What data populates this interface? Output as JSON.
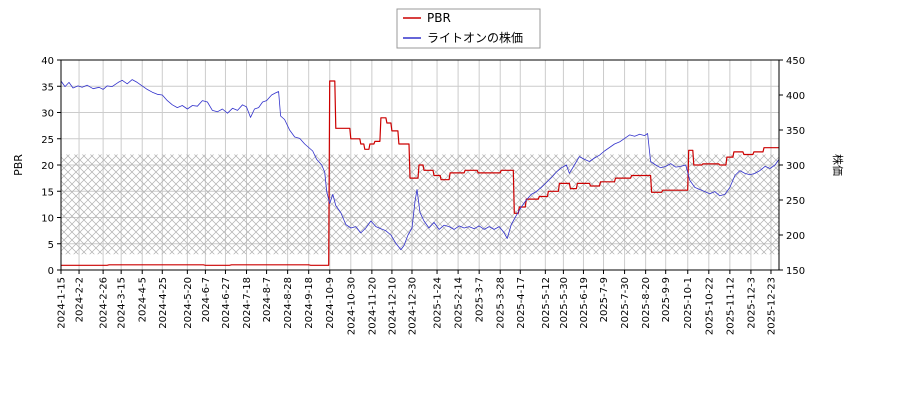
{
  "chart_data": {
    "type": "line",
    "legend": {
      "placement": "top-center",
      "entries": [
        {
          "label": "PBR",
          "color": "#cc0000"
        },
        {
          "label": "ライトオンの株価",
          "color": "#3333cc"
        }
      ]
    },
    "ylabel_left": "PBR",
    "ylabel_right": "株価",
    "ylim_left": [
      0,
      40
    ],
    "ylim_right": [
      150,
      450
    ],
    "yticks_left": [
      "0",
      "5",
      "10",
      "15",
      "20",
      "25",
      "30",
      "35",
      "40"
    ],
    "yticks_right": [
      "150",
      "200",
      "250",
      "300",
      "350",
      "400",
      "450"
    ],
    "xlim": [
      "2024-01-15",
      "2025-12-31"
    ],
    "xticks": [
      "2024-1-15",
      "2024-2-2",
      "2024-2-26",
      "2024-3-15",
      "2024-4-5",
      "2024-4-25",
      "2024-5-20",
      "2024-6-7",
      "2024-6-27",
      "2024-7-18",
      "2024-8-7",
      "2024-8-28",
      "2024-9-18",
      "2024-10-9",
      "2024-10-30",
      "2024-11-20",
      "2024-12-10",
      "2024-12-30",
      "2025-1-24",
      "2025-2-14",
      "2025-3-7",
      "2025-3-28",
      "2025-4-17",
      "2025-5-12",
      "2025-5-30",
      "2025-6-19",
      "2025-7-9",
      "2025-7-30",
      "2025-8-20",
      "2025-9-9",
      "2025-10-1",
      "2025-10-22",
      "2025-11-12",
      "2025-12-3",
      "2025-12-23"
    ],
    "grid": true,
    "hatched_band_left_units": [
      3,
      22
    ],
    "series": [
      {
        "name": "PBR",
        "axis": "left",
        "color": "#cc0000",
        "step": true,
        "points": [
          [
            "2024-01-15",
            0.9
          ],
          [
            "2024-03-01",
            0.9
          ],
          [
            "2024-03-03",
            1.0
          ],
          [
            "2024-06-05",
            1.0
          ],
          [
            "2024-06-07",
            0.9
          ],
          [
            "2024-07-01",
            0.9
          ],
          [
            "2024-07-03",
            1.0
          ],
          [
            "2024-09-18",
            1.0
          ],
          [
            "2024-09-20",
            0.9
          ],
          [
            "2024-10-08",
            0.9
          ],
          [
            "2024-10-09",
            36.0
          ],
          [
            "2024-10-14",
            36.0
          ],
          [
            "2024-10-15",
            27.0
          ],
          [
            "2024-10-29",
            27.0
          ],
          [
            "2024-10-30",
            25.0
          ],
          [
            "2024-11-08",
            25.0
          ],
          [
            "2024-11-09",
            24.0
          ],
          [
            "2024-11-12",
            24.0
          ],
          [
            "2024-11-13",
            23.0
          ],
          [
            "2024-11-17",
            23.0
          ],
          [
            "2024-11-18",
            24.0
          ],
          [
            "2024-11-22",
            24.0
          ],
          [
            "2024-11-23",
            24.5
          ],
          [
            "2024-11-28",
            24.5
          ],
          [
            "2024-11-29",
            29.0
          ],
          [
            "2024-12-04",
            29.0
          ],
          [
            "2024-12-05",
            28.0
          ],
          [
            "2024-12-09",
            28.0
          ],
          [
            "2024-12-10",
            26.5
          ],
          [
            "2024-12-16",
            26.5
          ],
          [
            "2024-12-17",
            24.0
          ],
          [
            "2024-12-27",
            24.0
          ],
          [
            "2024-12-28",
            17.5
          ],
          [
            "2025-01-05",
            17.5
          ],
          [
            "2025-01-06",
            20.0
          ],
          [
            "2025-01-10",
            20.0
          ],
          [
            "2025-01-11",
            19.0
          ],
          [
            "2025-01-20",
            19.0
          ],
          [
            "2025-01-21",
            18.0
          ],
          [
            "2025-01-27",
            18.0
          ],
          [
            "2025-01-28",
            17.2
          ],
          [
            "2025-02-05",
            17.2
          ],
          [
            "2025-02-06",
            18.5
          ],
          [
            "2025-02-20",
            18.5
          ],
          [
            "2025-02-21",
            19.0
          ],
          [
            "2025-03-05",
            19.0
          ],
          [
            "2025-03-06",
            18.5
          ],
          [
            "2025-03-28",
            18.5
          ],
          [
            "2025-03-29",
            19.0
          ],
          [
            "2025-04-10",
            19.0
          ],
          [
            "2025-04-11",
            10.8
          ],
          [
            "2025-04-15",
            10.8
          ],
          [
            "2025-04-16",
            12.0
          ],
          [
            "2025-04-22",
            12.0
          ],
          [
            "2025-04-23",
            13.5
          ],
          [
            "2025-05-05",
            13.5
          ],
          [
            "2025-05-06",
            14.0
          ],
          [
            "2025-05-14",
            14.0
          ],
          [
            "2025-05-15",
            15.0
          ],
          [
            "2025-05-25",
            15.0
          ],
          [
            "2025-05-26",
            16.5
          ],
          [
            "2025-06-05",
            16.5
          ],
          [
            "2025-06-06",
            15.5
          ],
          [
            "2025-06-12",
            15.5
          ],
          [
            "2025-06-13",
            16.5
          ],
          [
            "2025-06-25",
            16.5
          ],
          [
            "2025-06-26",
            16.0
          ],
          [
            "2025-07-05",
            16.0
          ],
          [
            "2025-07-06",
            16.8
          ],
          [
            "2025-07-20",
            16.8
          ],
          [
            "2025-07-21",
            17.5
          ],
          [
            "2025-08-05",
            17.5
          ],
          [
            "2025-08-06",
            18.0
          ],
          [
            "2025-08-25",
            18.0
          ],
          [
            "2025-08-26",
            14.8
          ],
          [
            "2025-09-05",
            14.8
          ],
          [
            "2025-09-06",
            15.2
          ],
          [
            "2025-10-01",
            15.2
          ],
          [
            "2025-10-02",
            22.8
          ],
          [
            "2025-10-06",
            22.8
          ],
          [
            "2025-10-07",
            20.0
          ],
          [
            "2025-10-15",
            20.0
          ],
          [
            "2025-10-16",
            20.2
          ],
          [
            "2025-11-01",
            20.2
          ],
          [
            "2025-11-02",
            20.0
          ],
          [
            "2025-11-08",
            20.0
          ],
          [
            "2025-11-09",
            21.5
          ],
          [
            "2025-11-15",
            21.5
          ],
          [
            "2025-11-16",
            22.5
          ],
          [
            "2025-11-25",
            22.5
          ],
          [
            "2025-11-26",
            22.0
          ],
          [
            "2025-12-05",
            22.0
          ],
          [
            "2025-12-06",
            22.5
          ],
          [
            "2025-12-15",
            22.5
          ],
          [
            "2025-12-16",
            23.3
          ],
          [
            "2025-12-31",
            23.3
          ]
        ]
      },
      {
        "name": "ライトオンの株価",
        "axis": "right",
        "color": "#3333cc",
        "step": false,
        "points": [
          [
            "2024-01-15",
            420
          ],
          [
            "2024-01-19",
            412
          ],
          [
            "2024-01-23",
            418
          ],
          [
            "2024-01-27",
            410
          ],
          [
            "2024-02-01",
            413
          ],
          [
            "2024-02-05",
            411
          ],
          [
            "2024-02-10",
            414
          ],
          [
            "2024-02-16",
            409
          ],
          [
            "2024-02-22",
            411
          ],
          [
            "2024-02-26",
            408
          ],
          [
            "2024-03-01",
            413
          ],
          [
            "2024-03-06",
            412
          ],
          [
            "2024-03-12",
            418
          ],
          [
            "2024-03-16",
            421
          ],
          [
            "2024-03-21",
            416
          ],
          [
            "2024-03-26",
            422
          ],
          [
            "2024-03-31",
            418
          ],
          [
            "2024-04-05",
            413
          ],
          [
            "2024-04-10",
            408
          ],
          [
            "2024-04-15",
            404
          ],
          [
            "2024-04-20",
            401
          ],
          [
            "2024-04-25",
            400
          ],
          [
            "2024-04-30",
            392
          ],
          [
            "2024-05-05",
            386
          ],
          [
            "2024-05-10",
            382
          ],
          [
            "2024-05-15",
            385
          ],
          [
            "2024-05-20",
            380
          ],
          [
            "2024-05-25",
            385
          ],
          [
            "2024-05-30",
            384
          ],
          [
            "2024-06-04",
            392
          ],
          [
            "2024-06-09",
            390
          ],
          [
            "2024-06-14",
            378
          ],
          [
            "2024-06-19",
            376
          ],
          [
            "2024-06-24",
            380
          ],
          [
            "2024-06-29",
            374
          ],
          [
            "2024-07-04",
            381
          ],
          [
            "2024-07-09",
            378
          ],
          [
            "2024-07-14",
            386
          ],
          [
            "2024-07-18",
            383
          ],
          [
            "2024-07-22",
            368
          ],
          [
            "2024-07-26",
            380
          ],
          [
            "2024-07-30",
            382
          ],
          [
            "2024-08-03",
            390
          ],
          [
            "2024-08-07",
            392
          ],
          [
            "2024-08-12",
            400
          ],
          [
            "2024-08-16",
            403
          ],
          [
            "2024-08-19",
            405
          ],
          [
            "2024-08-21",
            370
          ],
          [
            "2024-08-25",
            365
          ],
          [
            "2024-08-30",
            350
          ],
          [
            "2024-09-04",
            340
          ],
          [
            "2024-09-09",
            338
          ],
          [
            "2024-09-14",
            330
          ],
          [
            "2024-09-18",
            325
          ],
          [
            "2024-09-22",
            320
          ],
          [
            "2024-09-26",
            308
          ],
          [
            "2024-10-01",
            300
          ],
          [
            "2024-10-04",
            290
          ],
          [
            "2024-10-06",
            262
          ],
          [
            "2024-10-09",
            245
          ],
          [
            "2024-10-12",
            258
          ],
          [
            "2024-10-15",
            242
          ],
          [
            "2024-10-20",
            232
          ],
          [
            "2024-10-25",
            215
          ],
          [
            "2024-10-30",
            210
          ],
          [
            "2024-11-04",
            212
          ],
          [
            "2024-11-09",
            203
          ],
          [
            "2024-11-14",
            210
          ],
          [
            "2024-11-19",
            220
          ],
          [
            "2024-11-24",
            212
          ],
          [
            "2024-11-29",
            209
          ],
          [
            "2024-12-04",
            206
          ],
          [
            "2024-12-09",
            200
          ],
          [
            "2024-12-14",
            188
          ],
          [
            "2024-12-19",
            179
          ],
          [
            "2024-12-22",
            185
          ],
          [
            "2024-12-26",
            200
          ],
          [
            "2024-12-30",
            210
          ],
          [
            "2025-01-02",
            248
          ],
          [
            "2025-01-04",
            265
          ],
          [
            "2025-01-07",
            232
          ],
          [
            "2025-01-11",
            220
          ],
          [
            "2025-01-16",
            210
          ],
          [
            "2025-01-21",
            218
          ],
          [
            "2025-01-26",
            208
          ],
          [
            "2025-01-31",
            214
          ],
          [
            "2025-02-05",
            212
          ],
          [
            "2025-02-10",
            208
          ],
          [
            "2025-02-15",
            213
          ],
          [
            "2025-02-20",
            210
          ],
          [
            "2025-02-25",
            212
          ],
          [
            "2025-03-02",
            209
          ],
          [
            "2025-03-07",
            213
          ],
          [
            "2025-03-12",
            208
          ],
          [
            "2025-03-17",
            212
          ],
          [
            "2025-03-22",
            208
          ],
          [
            "2025-03-27",
            212
          ],
          [
            "2025-04-01",
            203
          ],
          [
            "2025-04-04",
            195
          ],
          [
            "2025-04-08",
            215
          ],
          [
            "2025-04-13",
            228
          ],
          [
            "2025-04-18",
            240
          ],
          [
            "2025-04-23",
            250
          ],
          [
            "2025-04-28",
            258
          ],
          [
            "2025-05-03",
            262
          ],
          [
            "2025-05-08",
            268
          ],
          [
            "2025-05-13",
            275
          ],
          [
            "2025-05-18",
            282
          ],
          [
            "2025-05-23",
            290
          ],
          [
            "2025-05-28",
            296
          ],
          [
            "2025-06-02",
            300
          ],
          [
            "2025-06-05",
            288
          ],
          [
            "2025-06-10",
            300
          ],
          [
            "2025-06-15",
            312
          ],
          [
            "2025-06-20",
            308
          ],
          [
            "2025-06-25",
            305
          ],
          [
            "2025-06-30",
            310
          ],
          [
            "2025-07-05",
            314
          ],
          [
            "2025-07-10",
            320
          ],
          [
            "2025-07-15",
            325
          ],
          [
            "2025-07-20",
            330
          ],
          [
            "2025-07-25",
            333
          ],
          [
            "2025-07-30",
            338
          ],
          [
            "2025-08-04",
            343
          ],
          [
            "2025-08-09",
            341
          ],
          [
            "2025-08-14",
            344
          ],
          [
            "2025-08-19",
            342
          ],
          [
            "2025-08-22",
            345
          ],
          [
            "2025-08-25",
            305
          ],
          [
            "2025-08-30",
            300
          ],
          [
            "2025-09-04",
            296
          ],
          [
            "2025-09-09",
            298
          ],
          [
            "2025-09-14",
            302
          ],
          [
            "2025-09-19",
            297
          ],
          [
            "2025-09-24",
            298
          ],
          [
            "2025-09-29",
            300
          ],
          [
            "2025-10-03",
            278
          ],
          [
            "2025-10-08",
            268
          ],
          [
            "2025-10-13",
            265
          ],
          [
            "2025-10-18",
            262
          ],
          [
            "2025-10-23",
            259
          ],
          [
            "2025-10-28",
            262
          ],
          [
            "2025-11-02",
            256
          ],
          [
            "2025-11-07",
            258
          ],
          [
            "2025-11-12",
            268
          ],
          [
            "2025-11-17",
            285
          ],
          [
            "2025-11-22",
            292
          ],
          [
            "2025-11-27",
            288
          ],
          [
            "2025-12-02",
            286
          ],
          [
            "2025-12-07",
            288
          ],
          [
            "2025-12-12",
            292
          ],
          [
            "2025-12-17",
            298
          ],
          [
            "2025-12-22",
            295
          ],
          [
            "2025-12-27",
            300
          ],
          [
            "2025-12-31",
            308
          ]
        ]
      }
    ]
  }
}
